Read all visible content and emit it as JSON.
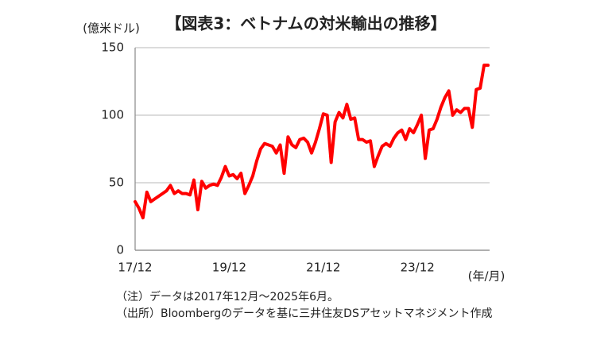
{
  "chart_data": {
    "type": "line",
    "title": "【図表3：ベトナムの対米輸出の推移】",
    "y_label": "(億米ドル)",
    "x_label": "(年/月)",
    "notes": [
      "（注）データは2017年12月～2025年6月。",
      "（出所）Bloombergのデータを基に三井住友DSアセットマネジメント作成"
    ],
    "categories": [
      "17/12",
      null,
      null,
      null,
      null,
      null,
      null,
      null,
      null,
      null,
      null,
      null,
      null,
      null,
      null,
      null,
      null,
      null,
      null,
      null,
      null,
      null,
      null,
      null,
      "19/12",
      null,
      null,
      null,
      null,
      null,
      null,
      null,
      null,
      null,
      null,
      null,
      null,
      null,
      null,
      null,
      null,
      null,
      null,
      null,
      null,
      null,
      null,
      null,
      "21/12",
      null,
      null,
      null,
      null,
      null,
      null,
      null,
      null,
      null,
      null,
      null,
      null,
      null,
      null,
      null,
      null,
      null,
      null,
      null,
      null,
      null,
      null,
      null,
      "23/12",
      null,
      null,
      null,
      null,
      null,
      null,
      null,
      null,
      null,
      null,
      null,
      null,
      null,
      null,
      null,
      null,
      null,
      null
    ],
    "values": [
      36,
      31,
      24,
      43,
      36,
      38,
      40,
      42,
      44,
      48,
      42,
      44,
      42,
      42,
      41,
      52,
      30,
      51,
      46,
      48,
      49,
      48,
      54,
      62,
      55,
      56,
      53,
      57,
      42,
      48,
      55,
      66,
      75,
      79,
      78,
      77,
      72,
      78,
      57,
      84,
      78,
      76,
      82,
      83,
      80,
      72,
      80,
      90,
      101,
      100,
      65,
      95,
      102,
      98,
      108,
      97,
      98,
      82,
      82,
      80,
      81,
      62,
      70,
      77,
      79,
      77,
      83,
      87,
      89,
      82,
      90,
      87,
      93,
      100,
      68,
      89,
      90,
      97,
      106,
      113,
      118,
      100,
      104,
      102,
      105,
      105,
      91,
      119,
      120,
      137,
      137
    ],
    "color": "#ff0000",
    "ylim": [
      0,
      150
    ],
    "yticks": [
      0,
      50,
      100,
      150
    ],
    "grid": true
  }
}
